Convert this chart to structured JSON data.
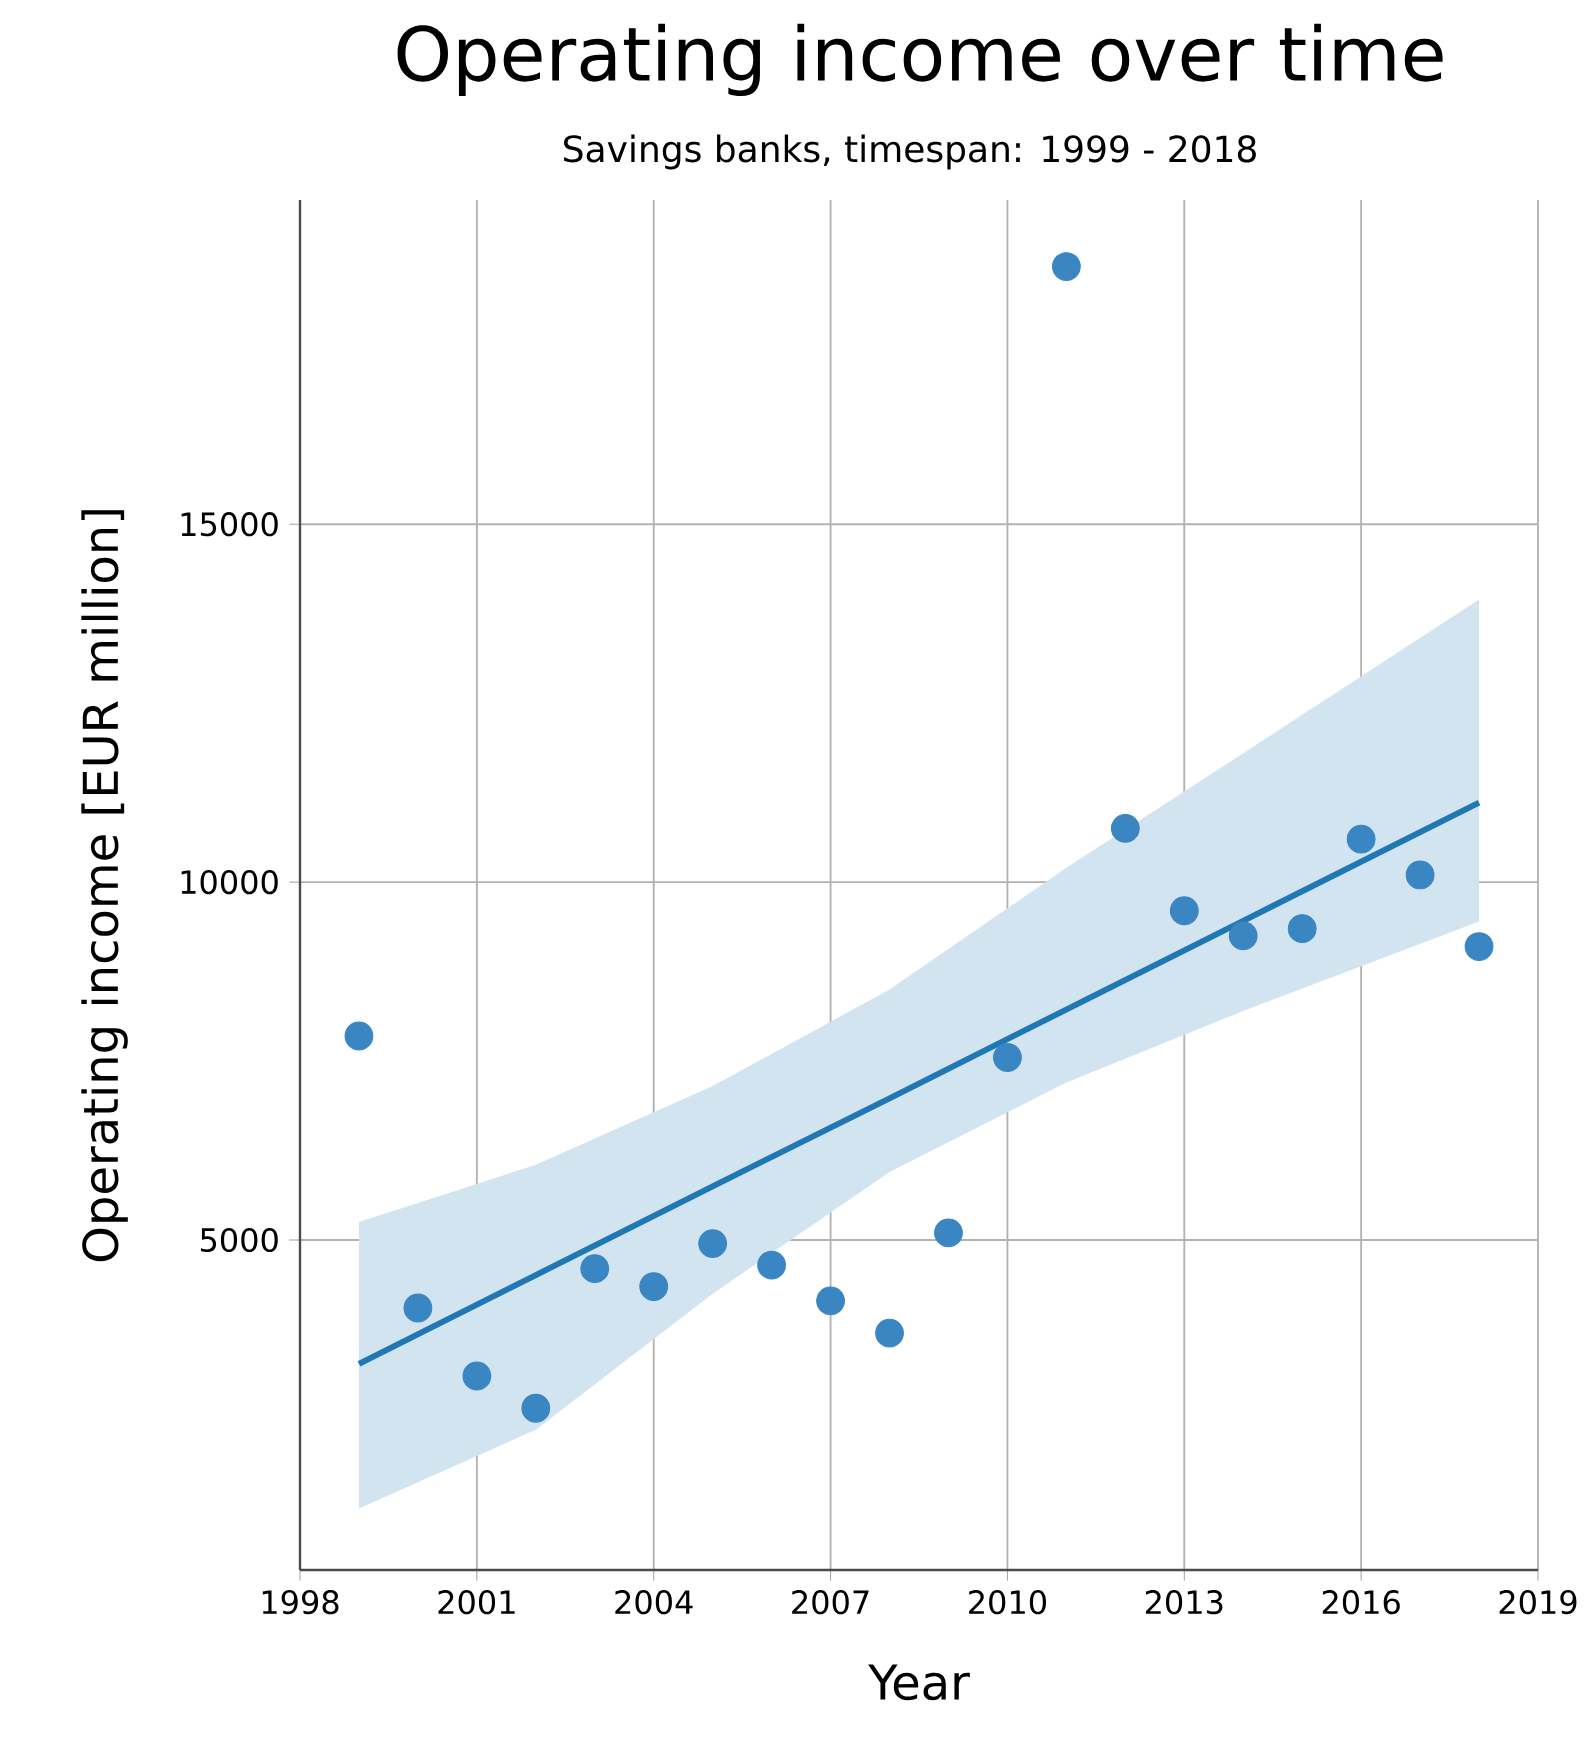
{
  "chart_data": {
    "type": "scatter",
    "title": "Operating income over time",
    "subtitle": "Savings banks, timespan: 1999 - 2018",
    "xlabel": "Year",
    "ylabel": "Operating income [EUR million]",
    "x": [
      1999,
      2000,
      2001,
      2002,
      2003,
      2004,
      2005,
      2006,
      2007,
      2008,
      2009,
      2010,
      2011,
      2012,
      2013,
      2014,
      2015,
      2016,
      2017,
      2018
    ],
    "series": [
      {
        "color": "#3a86c2",
        "marker": "circle",
        "values": [
          7850,
          4050,
          3100,
          2650,
          4600,
          4350,
          4950,
          4650,
          4150,
          3700,
          5100,
          7550,
          18600,
          10750,
          9600,
          9250,
          9350,
          10600,
          10100,
          9100
        ]
      },
      {
        "type": "line",
        "color": "#1f77b4",
        "marker": "none",
        "x": [
          1999,
          2002,
          2005,
          2008,
          2011,
          2014,
          2018
        ],
        "values": [
          3270,
          4510,
          5750,
          6980,
          8220,
          9460,
          11110
        ],
        "lower": [
          1250,
          2350,
          4250,
          5950,
          7200,
          8200,
          9450
        ],
        "upper": [
          5250,
          6050,
          7150,
          8500,
          10200,
          11800,
          13950
        ]
      }
    ],
    "xlim": [
      1998,
      2019
    ],
    "ylim": [
      390,
      19530
    ],
    "xticks": [
      1998,
      2001,
      2004,
      2007,
      2010,
      2013,
      2016,
      2019
    ],
    "yticks": [
      5000,
      10000,
      15000
    ],
    "grid": true
  }
}
